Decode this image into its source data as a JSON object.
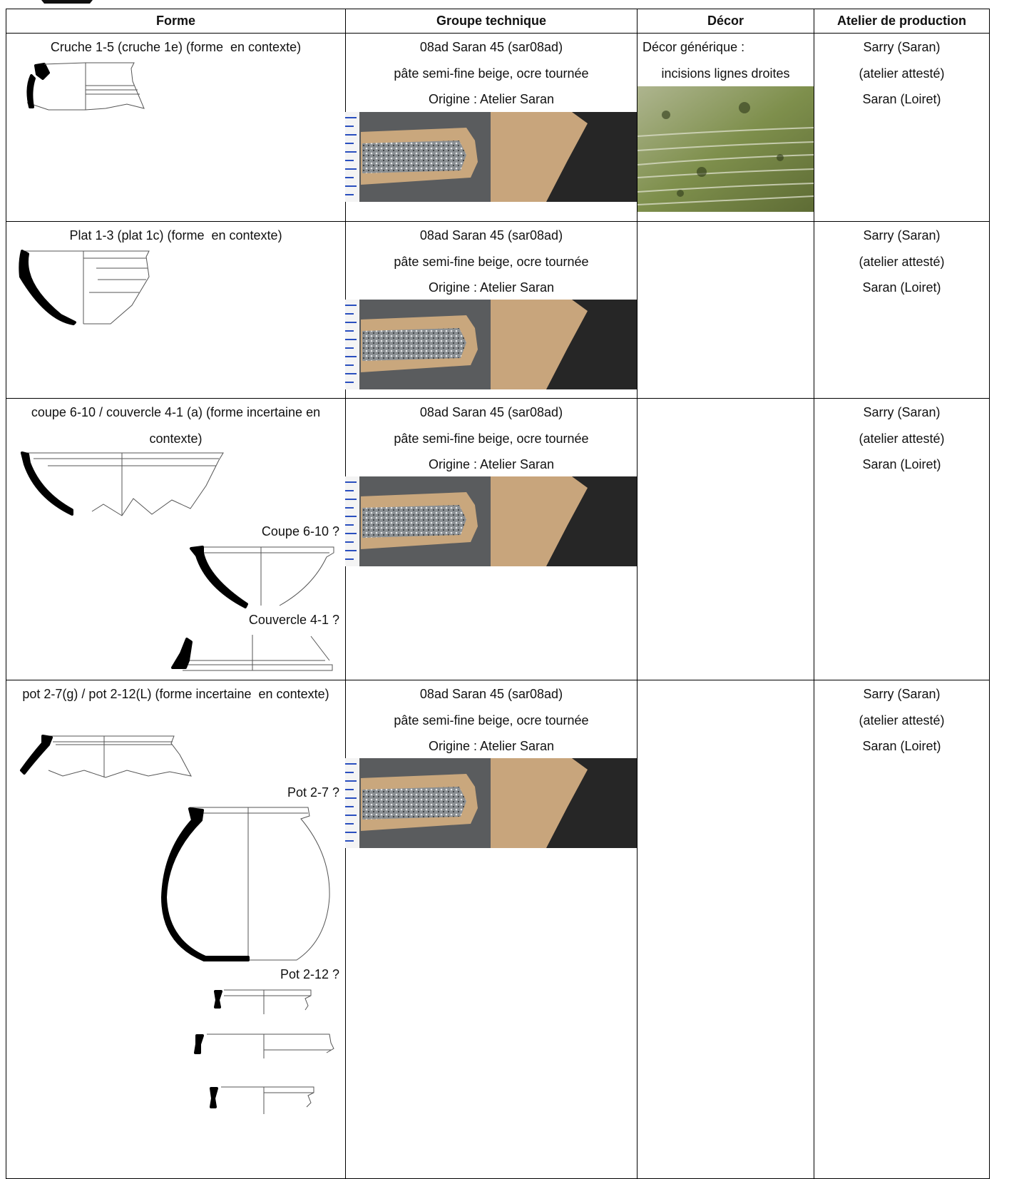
{
  "header": {
    "columns": [
      "Forme",
      "Groupe technique",
      "Décor",
      "Atelier de production"
    ]
  },
  "rows": [
    {
      "forme": "Cruche 1-5 (cruche 1e) (forme  en contexte)",
      "groupe": [
        "08ad Saran 45 (sar08ad)",
        "pâte semi-fine beige, ocre tournée",
        "Origine : Atelier Saran"
      ],
      "decor": [
        "Décor générique :",
        "incisions lignes droites"
      ],
      "atelier": [
        "Sarry (Saran)",
        "(atelier attesté)",
        "Saran (Loiret)"
      ]
    },
    {
      "forme": "Plat 1-3 (plat 1c) (forme  en contexte)",
      "groupe": [
        "08ad Saran 45 (sar08ad)",
        "pâte semi-fine beige, ocre tournée",
        "Origine : Atelier Saran"
      ],
      "atelier": [
        "Sarry (Saran)",
        "(atelier attesté)",
        "Saran (Loiret)"
      ]
    },
    {
      "forme": "coupe 6-10 / couvercle 4-1 (a) (forme incertaine en contexte)",
      "figure_labels": [
        "Coupe 6-10 ?",
        "Couvercle 4-1 ?"
      ],
      "groupe": [
        "08ad Saran 45 (sar08ad)",
        "pâte semi-fine beige, ocre tournée",
        "Origine : Atelier Saran"
      ],
      "atelier": [
        "Sarry (Saran)",
        "(atelier attesté)",
        "Saran (Loiret)"
      ]
    },
    {
      "forme": "pot 2-7(g) / pot 2-12(L) (forme incertaine  en contexte)",
      "figure_labels": [
        "Pot 2-7 ?",
        "Pot 2-12 ?"
      ],
      "groupe": [
        "08ad Saran 45 (sar08ad)",
        "pâte semi-fine beige, ocre tournée",
        "Origine : Atelier Saran"
      ],
      "atelier": [
        "Sarry (Saran)",
        "(atelier attesté)",
        "Saran (Loiret)"
      ]
    }
  ]
}
